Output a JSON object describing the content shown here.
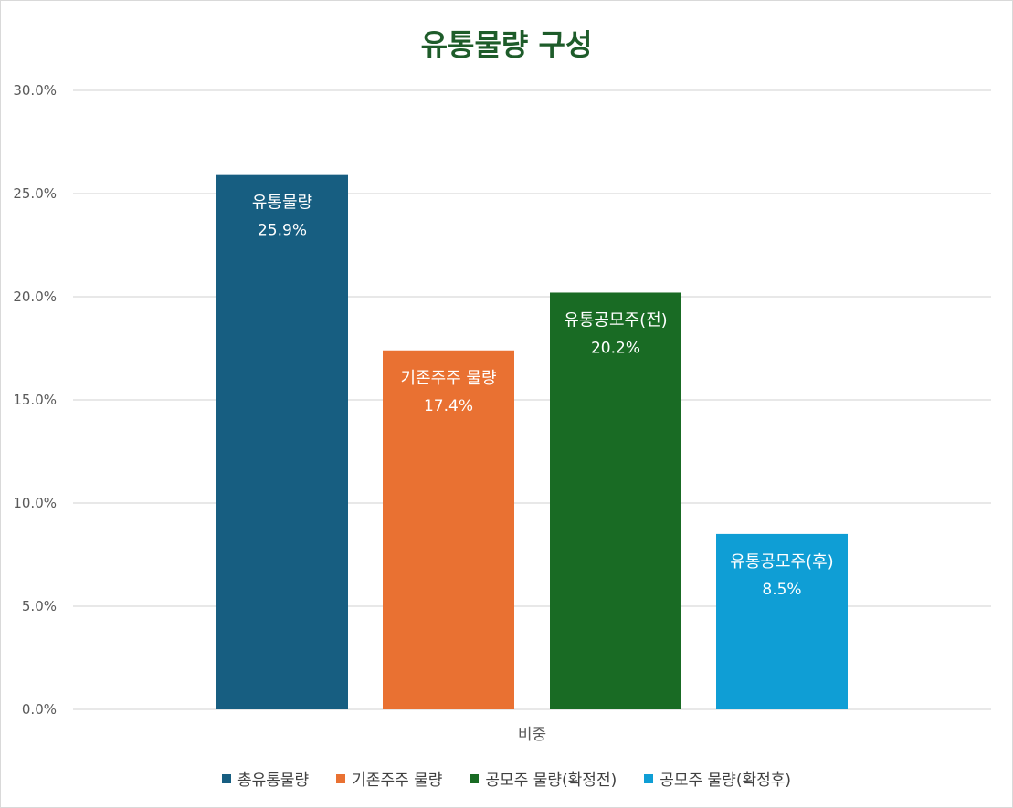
{
  "chart_data": {
    "type": "bar",
    "title": "유통물량 구성",
    "categories": [
      "비중"
    ],
    "ylim": [
      0,
      30
    ],
    "yticks": [
      "0.0%",
      "5.0%",
      "10.0%",
      "15.0%",
      "20.0%",
      "25.0%",
      "30.0%"
    ],
    "grid": true,
    "legend_position": "bottom",
    "series": [
      {
        "name": "총유통물량",
        "bar_label": "유통물량",
        "value": 25.9,
        "value_label": "25.9%",
        "color": "#175e81"
      },
      {
        "name": "기존주주 물량",
        "bar_label": "기존주주 물량",
        "value": 17.4,
        "value_label": "17.4%",
        "color": "#e97132"
      },
      {
        "name": "공모주 물량(확정전)",
        "bar_label": "유통공모주(전)",
        "value": 20.2,
        "value_label": "20.2%",
        "color": "#196b24"
      },
      {
        "name": "공모주 물량(확정후)",
        "bar_label": "유통공모주(후)",
        "value": 8.5,
        "value_label": "8.5%",
        "color": "#0f9ed5"
      }
    ]
  }
}
